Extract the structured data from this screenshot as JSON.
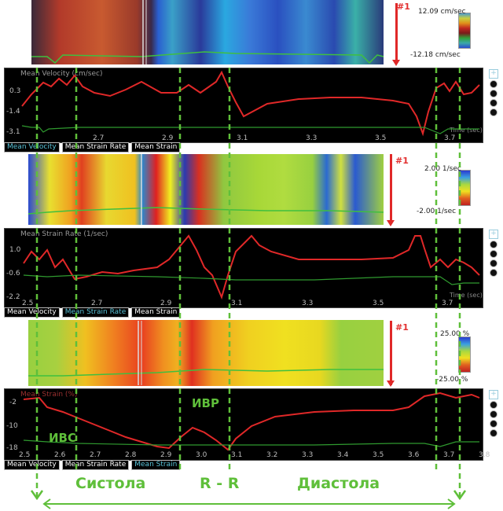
{
  "marker_label": "#1",
  "panel1": {
    "scale_top": "12.09 cm/sec",
    "scale_bottom": "-12.18 cm/sec",
    "plot_title": "Mean Velocity (cm/sec)",
    "y_ticks": [
      "0.3",
      "-1.4",
      "-3.1"
    ],
    "x_ticks": [
      "2.7",
      "2.9",
      "3.1",
      "3.3",
      "3.5",
      "3.7"
    ],
    "time_label": "Time (sec)",
    "tabs": [
      {
        "label": "Mean Velocity",
        "active": true
      },
      {
        "label": "Mean Strain Rate",
        "active": false
      },
      {
        "label": "Mean Strain",
        "active": false
      }
    ]
  },
  "panel2": {
    "scale_top": "2.00 1/sec",
    "scale_bottom": "-2.00 1/sec",
    "plot_title": "Mean Strain Rate (1/sec)",
    "y_ticks": [
      "1.0",
      "-0.6",
      "-2.2"
    ],
    "x_ticks": [
      "2.5",
      "2.7",
      "2.9",
      "3.1",
      "3.3",
      "3.5",
      "3.7"
    ],
    "time_label": "Time (sec)",
    "tabs": [
      {
        "label": "Mean Velocity",
        "active": false
      },
      {
        "label": "Mean Strain Rate",
        "active": true
      },
      {
        "label": "Mean Strain",
        "active": false
      }
    ]
  },
  "panel3": {
    "scale_top": "25.00 %",
    "scale_bottom": "-25.00 %",
    "plot_title": "Mean Strain (%)",
    "y_ticks": [
      "-2",
      "-10",
      "-18"
    ],
    "x_ticks": [
      "2.5",
      "2.6",
      "2.7",
      "2.8",
      "2.9",
      "3.0",
      "3.1",
      "3.2",
      "3.3",
      "3.4",
      "3.5",
      "3.6",
      "3.7",
      "3.8"
    ],
    "tabs": [
      {
        "label": "Mean Velocity",
        "active": false
      },
      {
        "label": "Mean Strain Rate",
        "active": false
      },
      {
        "label": "Mean Strain",
        "active": true
      }
    ]
  },
  "annotations": {
    "ivs": "ИВС",
    "ivr": "ИВР",
    "systole": "Систола",
    "rr": "R - R",
    "diastole": "Диастола"
  },
  "colors": {
    "trace": "#e02828",
    "secondary_trace": "#2f9a2f",
    "marker_dash": "#5fbf3a",
    "active_tab": "#59c3d8"
  }
}
